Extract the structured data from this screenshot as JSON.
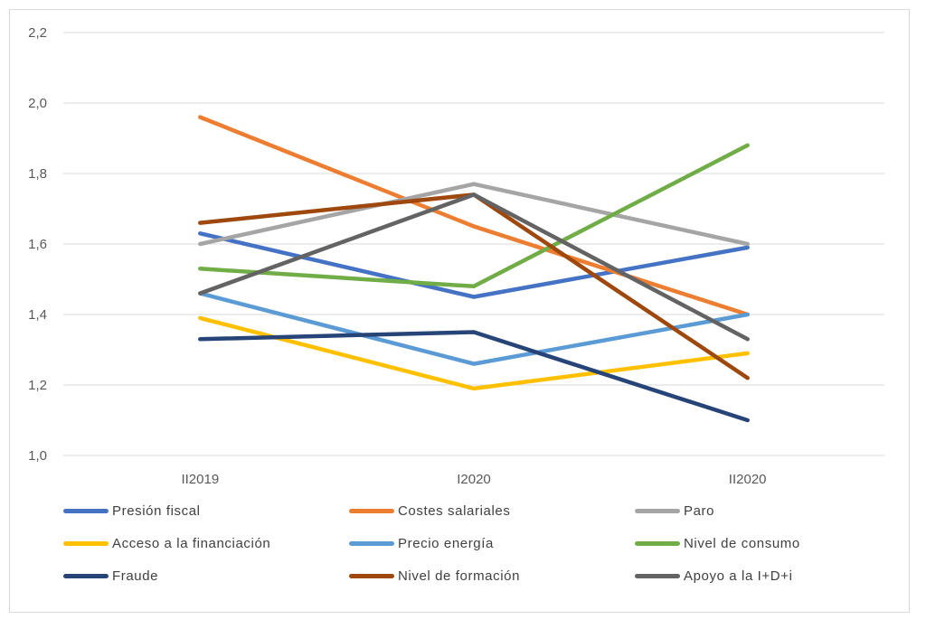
{
  "chart_data": {
    "type": "line",
    "title": "",
    "xlabel": "",
    "ylabel": "",
    "categories": [
      "II2019",
      "I2020",
      "II2020"
    ],
    "ylim": [
      1.0,
      2.2
    ],
    "yticks": [
      "1,0",
      "1,2",
      "1,4",
      "1,6",
      "1,8",
      "2,0",
      "2,2"
    ],
    "grid": true,
    "legend_position": "bottom",
    "series": [
      {
        "name": "Presión fiscal",
        "color": "#4472C4",
        "values": [
          1.63,
          1.45,
          1.59
        ]
      },
      {
        "name": "Costes salariales",
        "color": "#ED7D31",
        "values": [
          1.96,
          1.65,
          1.4
        ]
      },
      {
        "name": "Paro",
        "color": "#A5A5A5",
        "values": [
          1.6,
          1.77,
          1.6
        ]
      },
      {
        "name": "Acceso a la financiación",
        "color": "#FFC000",
        "values": [
          1.39,
          1.19,
          1.29
        ]
      },
      {
        "name": "Precio energía",
        "color": "#5B9BD5",
        "values": [
          1.46,
          1.26,
          1.4
        ]
      },
      {
        "name": "Nivel de consumo",
        "color": "#70AD47",
        "values": [
          1.53,
          1.48,
          1.88
        ]
      },
      {
        "name": "Fraude",
        "color": "#264478",
        "values": [
          1.33,
          1.35,
          1.1
        ]
      },
      {
        "name": "Nivel de formación",
        "color": "#9E480E",
        "values": [
          1.66,
          1.74,
          1.22
        ]
      },
      {
        "name": "Apoyo a la I+D+i",
        "color": "#636363",
        "values": [
          1.46,
          1.74,
          1.33
        ]
      }
    ]
  }
}
